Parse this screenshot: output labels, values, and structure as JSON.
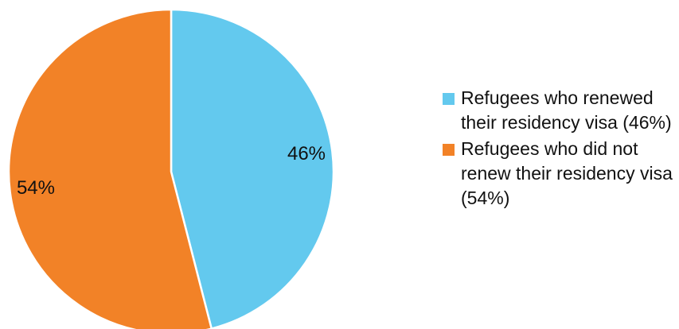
{
  "chart_data": {
    "type": "pie",
    "title": "",
    "categories": [
      "Refugees who renewed their residency visa (46%)",
      "Refugees who did not renew their residency visa (54%)"
    ],
    "values": [
      46,
      54
    ],
    "data_labels": [
      "46%",
      "54%"
    ],
    "colors": [
      "#63c9ee",
      "#f28227"
    ],
    "legend": {
      "placement": "right",
      "items": [
        {
          "label": "Refugees who renewed their residency visa (46%)",
          "color": "#63c9ee"
        },
        {
          "label": "Refugees who did not renew their residency visa (54%)",
          "color": "#f28227"
        }
      ]
    }
  }
}
